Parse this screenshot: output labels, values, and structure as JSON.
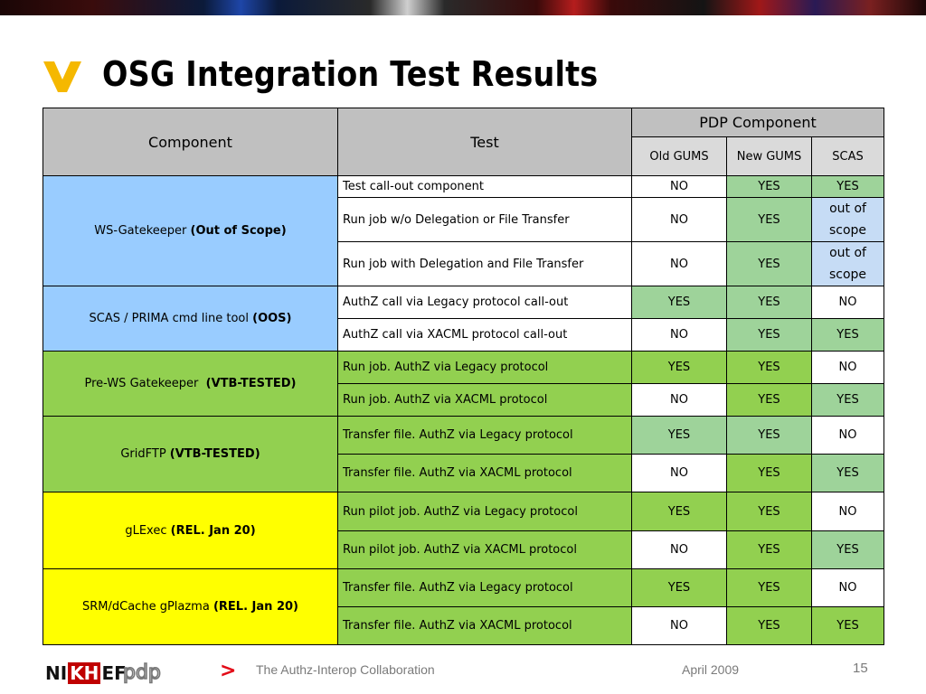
{
  "slide": {
    "title": "OSG Integration Test Results",
    "colors": {
      "accent_chevron": "#f5b800",
      "footer_arrow": "#e30b17"
    }
  },
  "table": {
    "header": {
      "component": "Component",
      "test": "Test",
      "pdp_group": "PDP Component",
      "pdp_columns": [
        "Old GUMS",
        "New GUMS",
        "SCAS"
      ]
    },
    "groups": [
      {
        "component": "WS-Gatekeeper",
        "component_note": "(Out of Scope)",
        "color": "#99ccff",
        "rows": [
          {
            "test": "Test call-out component",
            "old_gums": "NO",
            "new_gums": "YES",
            "scas": "YES"
          },
          {
            "test": "Run job w/o Delegation or File Transfer",
            "old_gums": "NO",
            "new_gums": "YES",
            "scas": "out of scope"
          },
          {
            "test": "Run job with Delegation and File Transfer",
            "old_gums": "NO",
            "new_gums": "YES",
            "scas": "out of scope"
          }
        ]
      },
      {
        "component": "SCAS / PRIMA cmd line tool",
        "component_note": "(OOS)",
        "color": "#99ccff",
        "rows": [
          {
            "test": "AuthZ call via Legacy protocol call-out",
            "old_gums": "YES",
            "new_gums": "YES",
            "scas": "NO"
          },
          {
            "test": "AuthZ call via XACML protocol call-out",
            "old_gums": "NO",
            "new_gums": "YES",
            "scas": "YES"
          }
        ]
      },
      {
        "component": "Pre-WS Gatekeeper",
        "component_note": "(VTB-TESTED)",
        "color": "#92d050",
        "rows": [
          {
            "test": "Run job. AuthZ  via Legacy protocol",
            "old_gums": "YES",
            "new_gums": "YES",
            "scas": "NO"
          },
          {
            "test": "Run job. AuthZ via XACML protocol",
            "old_gums": "NO",
            "new_gums": "YES",
            "scas": "YES"
          }
        ]
      },
      {
        "component": "GridFTP",
        "component_note": "(VTB-TESTED)",
        "color": "#92d050",
        "rows": [
          {
            "test": "Transfer file. AuthZ  via Legacy protocol",
            "old_gums": "YES",
            "new_gums": "YES",
            "scas": "NO"
          },
          {
            "test": "Transfer file. AuthZ via XACML protocol",
            "old_gums": "NO",
            "new_gums": "YES",
            "scas": "YES"
          }
        ]
      },
      {
        "component": "gLExec",
        "component_note": "(REL.  Jan 20)",
        "color": "#ffff00",
        "rows": [
          {
            "test": "Run pilot job. AuthZ  via Legacy protocol",
            "old_gums": "YES",
            "new_gums": "YES",
            "scas": "NO"
          },
          {
            "test": "Run pilot job. AuthZ via XACML protocol",
            "old_gums": "NO",
            "new_gums": "YES",
            "scas": "YES"
          }
        ]
      },
      {
        "component": "SRM/dCache gPlazma",
        "component_note": "(REL. Jan 20)",
        "color": "#ffff00",
        "rows": [
          {
            "test": "Transfer file. AuthZ  via Legacy protocol",
            "old_gums": "YES",
            "new_gums": "YES",
            "scas": "NO"
          },
          {
            "test": "Transfer file. AuthZ via XACML protocol",
            "old_gums": "NO",
            "new_gums": "YES",
            "scas": "YES"
          }
        ]
      }
    ]
  },
  "footer": {
    "logo_nikhef": {
      "left": "NI",
      "mid": "KH",
      "right": "EF"
    },
    "logo_pdp": "pdp",
    "arrow": ">",
    "text": "The Authz-Interop Collaboration",
    "date": "April 2009",
    "page": "15"
  }
}
